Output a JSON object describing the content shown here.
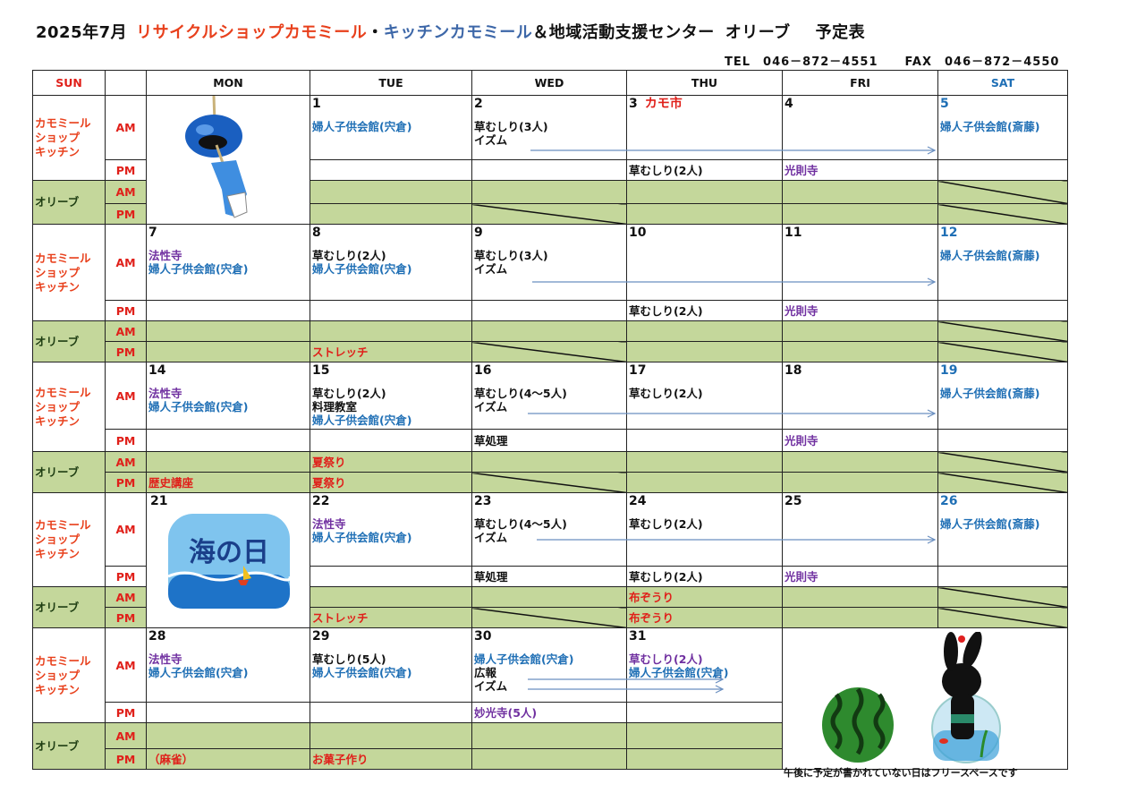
{
  "title": {
    "month": "2025年7月",
    "shop": "リサイクルショップカモミール",
    "separator": "・",
    "kitchen": "キッチンカモミール",
    "center": "＆地域活動支援センター",
    "olive": "オリーブ",
    "schedule": "予定表"
  },
  "contact": {
    "tel": "TEL　046－872－4551",
    "fax": "FAX　046－872－4550"
  },
  "headers": [
    "SUN",
    "",
    "MON",
    "TUE",
    "WED",
    "THU",
    "FRI",
    "SAT"
  ],
  "header_colors": {
    "SUN": "#e0201a",
    "SAT": "#1f6fb5"
  },
  "row_labels": {
    "kitchen": "カモミール\nショップ\nキッチン",
    "olive": "オリーブ",
    "am": "AM",
    "pm": "PM"
  },
  "colors": {
    "red": "#e0201a",
    "blue": "#1f6fb5",
    "purple": "#7030a0",
    "black": "#111111",
    "olive_bg": "#c4d79b",
    "sat_date": "#1f6fb5"
  },
  "images": {
    "wind_chime": "wind-chime",
    "umi_no_hi": "海の日",
    "summer": "watermelon-and-rabbit"
  },
  "weeks": [
    {
      "days": [
        {
          "image": "wind_chime"
        },
        {
          "date": "1",
          "am": [
            {
              "text": "婦人子供会館(宍倉)",
              "c": "blue"
            }
          ]
        },
        {
          "date": "2",
          "am": [
            {
              "text": "草むしり(3人)",
              "c": "black"
            },
            {
              "text": "イズム",
              "c": "black"
            }
          ],
          "opm_diag": true
        },
        {
          "date": "3",
          "note": "カモ市",
          "pm": [
            {
              "text": "草むしり(2人)",
              "c": "black"
            }
          ]
        },
        {
          "date": "4",
          "pm": [
            {
              "text": "光則寺",
              "c": "purple"
            }
          ]
        },
        {
          "date": "5",
          "am": [
            {
              "text": "婦人子供会館(斎藤)",
              "c": "blue"
            }
          ],
          "oam_diag": true,
          "opm_diag": true
        }
      ]
    },
    {
      "days": [
        {
          "date": "7",
          "am": [
            {
              "text": "法性寺",
              "c": "purple"
            },
            {
              "text": "婦人子供会館(宍倉)",
              "c": "blue"
            }
          ]
        },
        {
          "date": "8",
          "am": [
            {
              "text": "草むしり(2人)",
              "c": "black"
            },
            {
              "text": "婦人子供会館(宍倉)",
              "c": "blue"
            }
          ],
          "opm": [
            {
              "text": "ストレッチ",
              "c": "red"
            }
          ]
        },
        {
          "date": "9",
          "am": [
            {
              "text": "草むしり(3人)",
              "c": "black"
            },
            {
              "text": "イズム",
              "c": "black"
            }
          ],
          "opm_diag": true
        },
        {
          "date": "10",
          "pm": [
            {
              "text": "草むしり(2人)",
              "c": "black"
            }
          ]
        },
        {
          "date": "11",
          "pm": [
            {
              "text": "光則寺",
              "c": "purple"
            }
          ]
        },
        {
          "date": "12",
          "am": [
            {
              "text": "婦人子供会館(斎藤)",
              "c": "blue"
            }
          ],
          "oam_diag": true,
          "opm_diag": true
        }
      ]
    },
    {
      "days": [
        {
          "date": "14",
          "am": [
            {
              "text": "法性寺",
              "c": "purple"
            },
            {
              "text": "婦人子供会館(宍倉)",
              "c": "blue"
            }
          ],
          "opm": [
            {
              "text": "歴史講座",
              "c": "red"
            }
          ]
        },
        {
          "date": "15",
          "am": [
            {
              "text": "草むしり(2人)",
              "c": "black"
            },
            {
              "text": "料理教室",
              "c": "black"
            },
            {
              "text": "婦人子供会館(宍倉)",
              "c": "blue"
            }
          ],
          "oam": [
            {
              "text": "夏祭り",
              "c": "red"
            }
          ],
          "opm": [
            {
              "text": "夏祭り",
              "c": "red"
            }
          ]
        },
        {
          "date": "16",
          "am": [
            {
              "text": "草むしり(4～5人)",
              "c": "black"
            },
            {
              "text": "イズム",
              "c": "black"
            }
          ],
          "pm": [
            {
              "text": "草処理",
              "c": "black"
            }
          ],
          "opm_diag": true
        },
        {
          "date": "17",
          "am": [
            {
              "text": "草むしり(2人)",
              "c": "black"
            }
          ]
        },
        {
          "date": "18",
          "pm": [
            {
              "text": "光則寺",
              "c": "purple"
            }
          ]
        },
        {
          "date": "19",
          "am": [
            {
              "text": "婦人子供会館(斎藤)",
              "c": "blue"
            }
          ],
          "oam_diag": true,
          "opm_diag": true
        }
      ]
    },
    {
      "days": [
        {
          "date": "21",
          "image": "umi_no_hi"
        },
        {
          "date": "22",
          "am": [
            {
              "text": "法性寺",
              "c": "purple"
            },
            {
              "text": "婦人子供会館(宍倉)",
              "c": "blue"
            }
          ],
          "opm": [
            {
              "text": "ストレッチ",
              "c": "red"
            }
          ]
        },
        {
          "date": "23",
          "am": [
            {
              "text": "草むしり(4～5人)",
              "c": "black"
            },
            {
              "text": "イズム",
              "c": "black"
            }
          ],
          "pm": [
            {
              "text": "草処理",
              "c": "black"
            }
          ],
          "opm_diag": true
        },
        {
          "date": "24",
          "am": [
            {
              "text": "草むしり(2人)",
              "c": "black"
            }
          ],
          "pm": [
            {
              "text": "草むしり(2人)",
              "c": "black"
            }
          ],
          "oam": [
            {
              "text": "布ぞうり",
              "c": "red"
            }
          ],
          "opm": [
            {
              "text": "布ぞうり",
              "c": "red"
            }
          ]
        },
        {
          "date": "25",
          "pm": [
            {
              "text": "光則寺",
              "c": "purple"
            }
          ]
        },
        {
          "date": "26",
          "am": [
            {
              "text": "婦人子供会館(斎藤)",
              "c": "blue"
            }
          ],
          "oam_diag": true,
          "opm_diag": true
        }
      ]
    },
    {
      "days": [
        {
          "date": "28",
          "am": [
            {
              "text": "法性寺",
              "c": "purple"
            },
            {
              "text": "婦人子供会館(宍倉)",
              "c": "blue"
            }
          ],
          "opm": [
            {
              "text": "（麻雀）",
              "c": "red"
            }
          ]
        },
        {
          "date": "29",
          "am": [
            {
              "text": "草むしり(5人)",
              "c": "black"
            },
            {
              "text": "婦人子供会館(宍倉)",
              "c": "blue"
            }
          ],
          "opm": [
            {
              "text": "お菓子作り",
              "c": "red"
            }
          ]
        },
        {
          "date": "30",
          "am": [
            {
              "text": "婦人子供会館(宍倉)",
              "c": "blue"
            },
            {
              "text": "広報",
              "c": "black"
            },
            {
              "text": "イズム",
              "c": "black"
            }
          ],
          "pm": [
            {
              "text": "妙光寺(5人)",
              "c": "purple"
            }
          ]
        },
        {
          "date": "31",
          "am": [
            {
              "text": "草むしり(2人)",
              "c": "purple"
            },
            {
              "text": "婦人子供会館(宍倉)",
              "c": "blue"
            }
          ]
        },
        {
          "image": "summer",
          "span2": true
        }
      ]
    }
  ],
  "footnote": "午後に予定が書かれていない日はフリースペースです"
}
